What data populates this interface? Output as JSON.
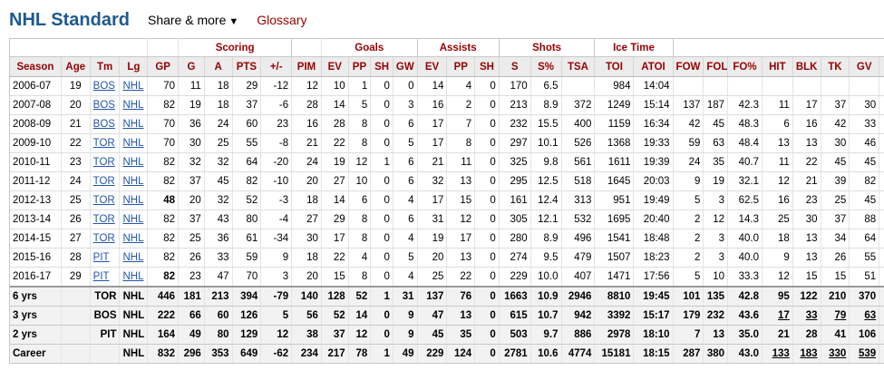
{
  "header": {
    "title": "NHL Standard",
    "share_label": "Share & more",
    "share_caret": "▼",
    "glossary_label": "Glossary"
  },
  "over_header": [
    {
      "label": "",
      "span": 4,
      "group": false
    },
    {
      "label": "",
      "span": 1,
      "group": false
    },
    {
      "label": "Scoring",
      "span": 4,
      "group": true
    },
    {
      "label": "",
      "span": 1,
      "group": false
    },
    {
      "label": "Goals",
      "span": 4,
      "group": true
    },
    {
      "label": "Assists",
      "span": 3,
      "group": true
    },
    {
      "label": "Shots",
      "span": 3,
      "group": true
    },
    {
      "label": "Ice Time",
      "span": 2,
      "group": true
    },
    {
      "label": "",
      "span": 8,
      "group": false
    }
  ],
  "columns": [
    "Season",
    "Age",
    "Tm",
    "Lg",
    "GP",
    "G",
    "A",
    "PTS",
    "+/-",
    "PIM",
    "EV",
    "PP",
    "SH",
    "GW",
    "EV",
    "PP",
    "SH",
    "S",
    "S%",
    "TSA",
    "TOI",
    "ATOI",
    "FOW",
    "FOL",
    "FO%",
    "HIT",
    "BLK",
    "TK",
    "GV",
    ""
  ],
  "rows": [
    [
      "2006-07",
      "19",
      "BOS",
      "NHL",
      "70",
      "11",
      "18",
      "29",
      "-12",
      "12",
      "10",
      "1",
      "0",
      "0",
      "14",
      "4",
      "0",
      "170",
      "6.5",
      "",
      "984",
      "14:04",
      "",
      "",
      "",
      "",
      "",
      "",
      "",
      ""
    ],
    [
      "2007-08",
      "20",
      "BOS",
      "NHL",
      "82",
      "19",
      "18",
      "37",
      "-6",
      "28",
      "14",
      "5",
      "0",
      "3",
      "16",
      "2",
      "0",
      "213",
      "8.9",
      "372",
      "1249",
      "15:14",
      "137",
      "187",
      "42.3",
      "11",
      "17",
      "37",
      "30",
      ""
    ],
    [
      "2008-09",
      "21",
      "BOS",
      "NHL",
      "70",
      "36",
      "24",
      "60",
      "23",
      "16",
      "28",
      "8",
      "0",
      "6",
      "17",
      "7",
      "0",
      "232",
      "15.5",
      "400",
      "1159",
      "16:34",
      "42",
      "45",
      "48.3",
      "6",
      "16",
      "42",
      "33",
      ""
    ],
    [
      "2009-10",
      "22",
      "TOR",
      "NHL",
      "70",
      "30",
      "25",
      "55",
      "-8",
      "21",
      "22",
      "8",
      "0",
      "5",
      "17",
      "8",
      "0",
      "297",
      "10.1",
      "526",
      "1368",
      "19:33",
      "59",
      "63",
      "48.4",
      "13",
      "13",
      "30",
      "46",
      ""
    ],
    [
      "2010-11",
      "23",
      "TOR",
      "NHL",
      "82",
      "32",
      "32",
      "64",
      "-20",
      "24",
      "19",
      "12",
      "1",
      "6",
      "21",
      "11",
      "0",
      "325",
      "9.8",
      "561",
      "1611",
      "19:39",
      "24",
      "35",
      "40.7",
      "11",
      "22",
      "45",
      "45",
      ""
    ],
    [
      "2011-12",
      "24",
      "TOR",
      "NHL",
      "82",
      "37",
      "45",
      "82",
      "-10",
      "20",
      "27",
      "10",
      "0",
      "6",
      "32",
      "13",
      "0",
      "295",
      "12.5",
      "518",
      "1645",
      "20:03",
      "9",
      "19",
      "32.1",
      "12",
      "21",
      "39",
      "82",
      ""
    ],
    [
      "2012-13",
      "25",
      "TOR",
      "NHL",
      "48",
      "20",
      "32",
      "52",
      "-3",
      "18",
      "14",
      "6",
      "0",
      "4",
      "17",
      "15",
      "0",
      "161",
      "12.4",
      "313",
      "951",
      "19:49",
      "5",
      "3",
      "62.5",
      "16",
      "23",
      "25",
      "45",
      ""
    ],
    [
      "2013-14",
      "26",
      "TOR",
      "NHL",
      "82",
      "37",
      "43",
      "80",
      "-4",
      "27",
      "29",
      "8",
      "0",
      "6",
      "31",
      "12",
      "0",
      "305",
      "12.1",
      "532",
      "1695",
      "20:40",
      "2",
      "12",
      "14.3",
      "25",
      "30",
      "37",
      "88",
      ""
    ],
    [
      "2014-15",
      "27",
      "TOR",
      "NHL",
      "82",
      "25",
      "36",
      "61",
      "-34",
      "30",
      "17",
      "8",
      "0",
      "4",
      "19",
      "17",
      "0",
      "280",
      "8.9",
      "496",
      "1541",
      "18:48",
      "2",
      "3",
      "40.0",
      "18",
      "13",
      "34",
      "64",
      ""
    ],
    [
      "2015-16",
      "28",
      "PIT",
      "NHL",
      "82",
      "26",
      "33",
      "59",
      "9",
      "18",
      "22",
      "4",
      "0",
      "5",
      "20",
      "13",
      "0",
      "274",
      "9.5",
      "479",
      "1507",
      "18:23",
      "2",
      "3",
      "40.0",
      "9",
      "13",
      "26",
      "55",
      ""
    ],
    [
      "2016-17",
      "29",
      "PIT",
      "NHL",
      "82",
      "23",
      "47",
      "70",
      "3",
      "20",
      "15",
      "8",
      "0",
      "4",
      "25",
      "22",
      "0",
      "229",
      "10.0",
      "407",
      "1471",
      "17:56",
      "5",
      "10",
      "33.3",
      "12",
      "15",
      "15",
      "51",
      ""
    ]
  ],
  "bold_cells": [
    [
      6,
      4
    ],
    [
      10,
      4
    ]
  ],
  "totals": [
    [
      "6 yrs",
      "",
      "TOR",
      "NHL",
      "446",
      "181",
      "213",
      "394",
      "-79",
      "140",
      "128",
      "52",
      "1",
      "31",
      "137",
      "76",
      "0",
      "1663",
      "10.9",
      "2946",
      "8810",
      "19:45",
      "101",
      "135",
      "42.8",
      "95",
      "122",
      "210",
      "370",
      ""
    ],
    [
      "3 yrs",
      "",
      "BOS",
      "NHL",
      "222",
      "66",
      "60",
      "126",
      "5",
      "56",
      "52",
      "14",
      "0",
      "9",
      "47",
      "13",
      "0",
      "615",
      "10.7",
      "942",
      "3392",
      "15:17",
      "179",
      "232",
      "43.6",
      "17",
      "33",
      "79",
      "63",
      ""
    ],
    [
      "2 yrs",
      "",
      "PIT",
      "NHL",
      "164",
      "49",
      "80",
      "129",
      "12",
      "38",
      "37",
      "12",
      "0",
      "9",
      "45",
      "35",
      "0",
      "503",
      "9.7",
      "886",
      "2978",
      "18:10",
      "7",
      "13",
      "35.0",
      "21",
      "28",
      "41",
      "106",
      ""
    ],
    [
      "Career",
      "",
      "",
      "NHL",
      "832",
      "296",
      "353",
      "649",
      "-62",
      "234",
      "217",
      "78",
      "1",
      "49",
      "229",
      "124",
      "0",
      "2781",
      "10.6",
      "4774",
      "15181",
      "18:15",
      "287",
      "380",
      "43.0",
      "133",
      "183",
      "330",
      "539",
      ""
    ]
  ],
  "underlined_total_cells": [
    [
      1,
      25
    ],
    [
      1,
      26
    ],
    [
      1,
      27
    ],
    [
      1,
      28
    ],
    [
      3,
      25
    ],
    [
      3,
      26
    ],
    [
      3,
      27
    ],
    [
      3,
      28
    ]
  ]
}
